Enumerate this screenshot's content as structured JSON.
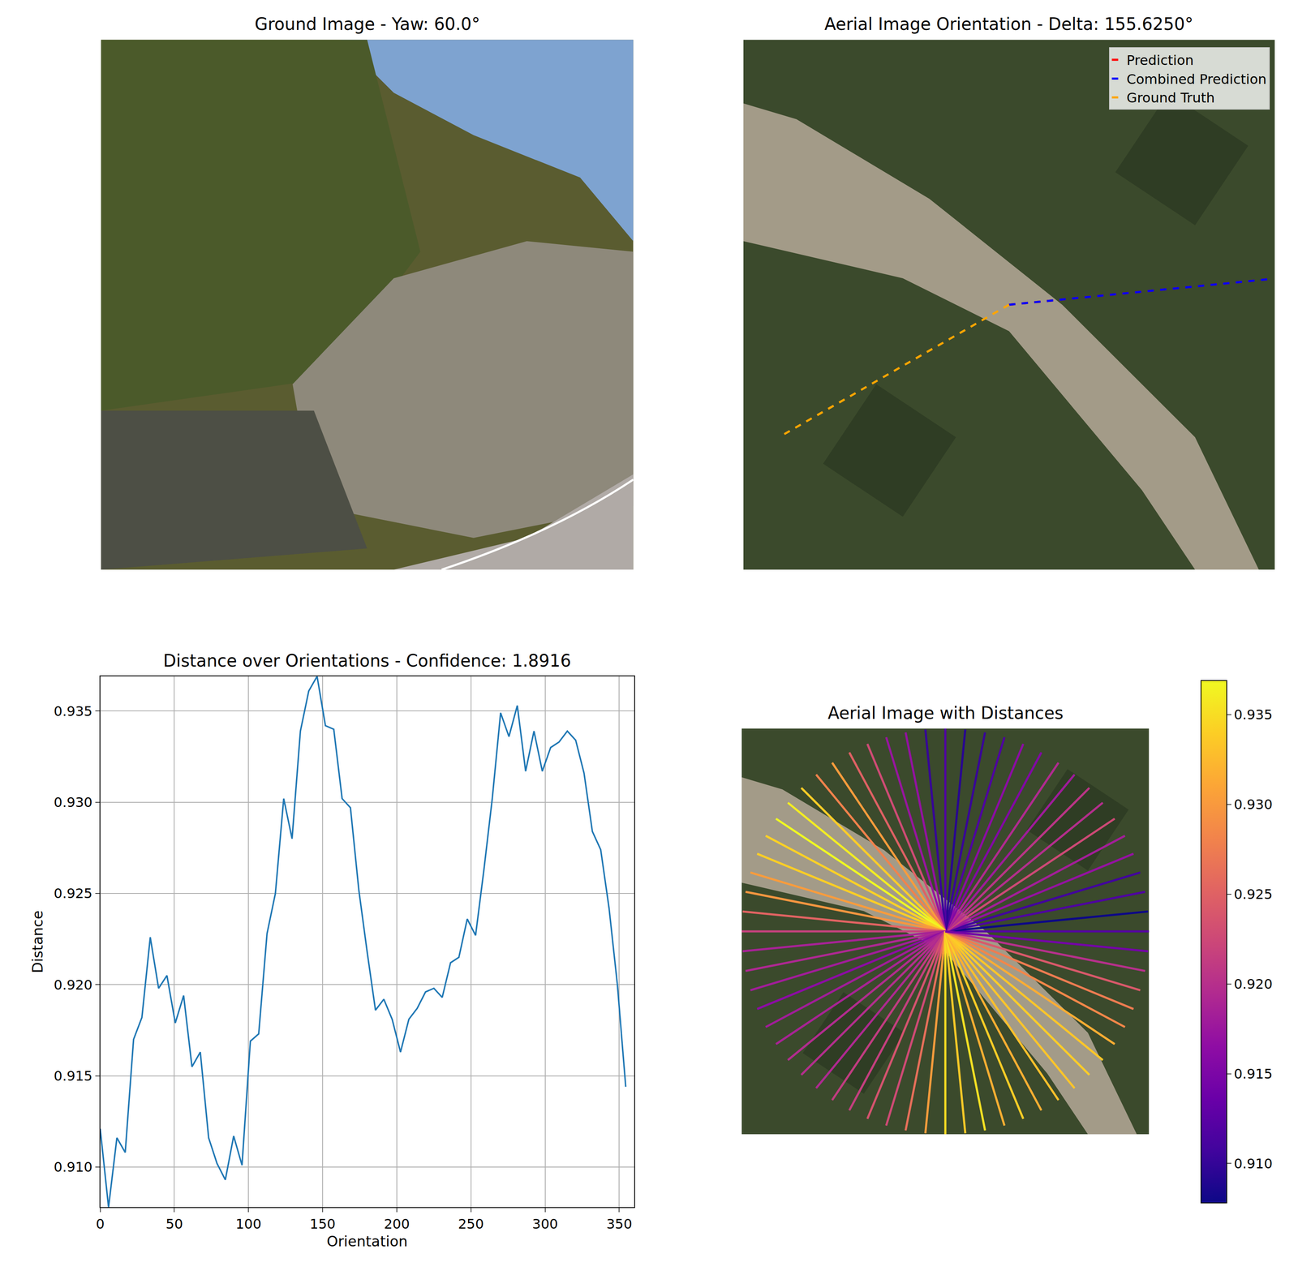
{
  "chart_data": [
    {
      "type": "image",
      "title": "Ground Image - Yaw: 60.0°",
      "tick_labels": false
    },
    {
      "type": "rays",
      "title": "Aerial Image Orientation - Delta: 155.6250°",
      "tick_labels": false,
      "legend": "upper right",
      "series": [
        {
          "name": "Prediction",
          "color": "red",
          "line_style": "dashed",
          "orientation": 5.625
        },
        {
          "name": "Combined Prediction",
          "color": "blue",
          "line_style": "dashed",
          "orientation": 5.625
        },
        {
          "name": "Ground Truth",
          "color": "orange",
          "line_style": "dashed",
          "orientation": 210
        }
      ]
    },
    {
      "type": "line",
      "title": "Distance over Orientations - Confidence: 1.8916",
      "x_label": "Orientation",
      "y_label": "Distance",
      "x": [
        0,
        5.625,
        11.25,
        16.875,
        22.5,
        28.125,
        33.75,
        39.375,
        45,
        50.625,
        56.25,
        61.875,
        67.5,
        73.125,
        78.75,
        84.375,
        90,
        95.625,
        101.25,
        106.875,
        112.5,
        118.125,
        123.75,
        129.375,
        135,
        140.625,
        146.25,
        151.875,
        157.5,
        163.125,
        168.75,
        174.375,
        180,
        185.625,
        191.25,
        196.875,
        202.5,
        208.125,
        213.75,
        219.375,
        225,
        230.625,
        236.25,
        241.875,
        247.5,
        253.125,
        258.75,
        264.375,
        270,
        275.625,
        281.25,
        286.875,
        292.5,
        298.125,
        303.75,
        309.375,
        315,
        320.625,
        326.25,
        331.875,
        337.5,
        343.125,
        348.75,
        354.375
      ],
      "values": [
        0.9121,
        0.9078,
        0.9116,
        0.9108,
        0.917,
        0.9182,
        0.9226,
        0.9198,
        0.9205,
        0.9179,
        0.9194,
        0.9155,
        0.9163,
        0.9116,
        0.9102,
        0.9093,
        0.9117,
        0.9101,
        0.9169,
        0.9173,
        0.9228,
        0.925,
        0.9302,
        0.928,
        0.9339,
        0.9361,
        0.9369,
        0.9342,
        0.934,
        0.9302,
        0.9297,
        0.9252,
        0.9218,
        0.9186,
        0.9192,
        0.9181,
        0.9163,
        0.9181,
        0.9187,
        0.9196,
        0.9198,
        0.9193,
        0.9212,
        0.9215,
        0.9236,
        0.9227,
        0.9263,
        0.9302,
        0.9349,
        0.9336,
        0.9353,
        0.9317,
        0.9339,
        0.9317,
        0.933,
        0.9333,
        0.9339,
        0.9334,
        0.9316,
        0.9284,
        0.9274,
        0.9242,
        0.92,
        0.9144
      ],
      "color": "#1f77b4",
      "xlim": [
        0,
        360
      ],
      "xticks": [
        0,
        50,
        100,
        150,
        200,
        250,
        300,
        350
      ],
      "ylim": [
        0.9078,
        0.9369
      ],
      "yticks": [
        {
          "value": 0.91,
          "label": "0.910"
        },
        {
          "value": 0.915,
          "label": "0.915"
        },
        {
          "value": 0.92,
          "label": "0.920"
        },
        {
          "value": 0.925,
          "label": "0.925"
        },
        {
          "value": 0.93,
          "label": "0.930"
        },
        {
          "value": 0.935,
          "label": "0.935"
        }
      ],
      "grid": true
    },
    {
      "type": "rays",
      "title": "Aerial Image with Distances",
      "tick_labels": false,
      "color": "plasma",
      "orientations": [
        0,
        5.625,
        11.25,
        16.875,
        22.5,
        28.125,
        33.75,
        39.375,
        45,
        50.625,
        56.25,
        61.875,
        67.5,
        73.125,
        78.75,
        84.375,
        90,
        95.625,
        101.25,
        106.875,
        112.5,
        118.125,
        123.75,
        129.375,
        135,
        140.625,
        146.25,
        151.875,
        157.5,
        163.125,
        168.75,
        174.375,
        180,
        185.625,
        191.25,
        196.875,
        202.5,
        208.125,
        213.75,
        219.375,
        225,
        230.625,
        236.25,
        241.875,
        247.5,
        253.125,
        258.75,
        264.375,
        270,
        275.625,
        281.25,
        286.875,
        292.5,
        298.125,
        303.75,
        309.375,
        315,
        320.625,
        326.25,
        331.875,
        337.5,
        343.125,
        348.75,
        354.375
      ],
      "distances": [
        0.9121,
        0.9078,
        0.9116,
        0.9108,
        0.917,
        0.9182,
        0.9226,
        0.9198,
        0.9205,
        0.9179,
        0.9194,
        0.9155,
        0.9163,
        0.9116,
        0.9102,
        0.9093,
        0.9117,
        0.9101,
        0.9169,
        0.9173,
        0.9228,
        0.925,
        0.9302,
        0.928,
        0.9339,
        0.9361,
        0.9369,
        0.9342,
        0.934,
        0.9302,
        0.9297,
        0.9252,
        0.9218,
        0.9186,
        0.9192,
        0.9181,
        0.9163,
        0.9181,
        0.9187,
        0.9196,
        0.9198,
        0.9193,
        0.9212,
        0.9215,
        0.9236,
        0.9227,
        0.9263,
        0.9302,
        0.9349,
        0.9336,
        0.9353,
        0.9317,
        0.9339,
        0.9317,
        0.933,
        0.9333,
        0.9339,
        0.9334,
        0.9316,
        0.9284,
        0.9274,
        0.9242,
        0.92,
        0.9144
      ],
      "colorbar_range": [
        0.9078,
        0.9369
      ],
      "colorbar_ticks": [
        {
          "value": 0.91,
          "label": "0.910"
        },
        {
          "value": 0.915,
          "label": "0.915"
        },
        {
          "value": 0.92,
          "label": "0.920"
        },
        {
          "value": 0.925,
          "label": "0.925"
        },
        {
          "value": 0.93,
          "label": "0.930"
        },
        {
          "value": 0.935,
          "label": "0.935"
        }
      ]
    }
  ]
}
